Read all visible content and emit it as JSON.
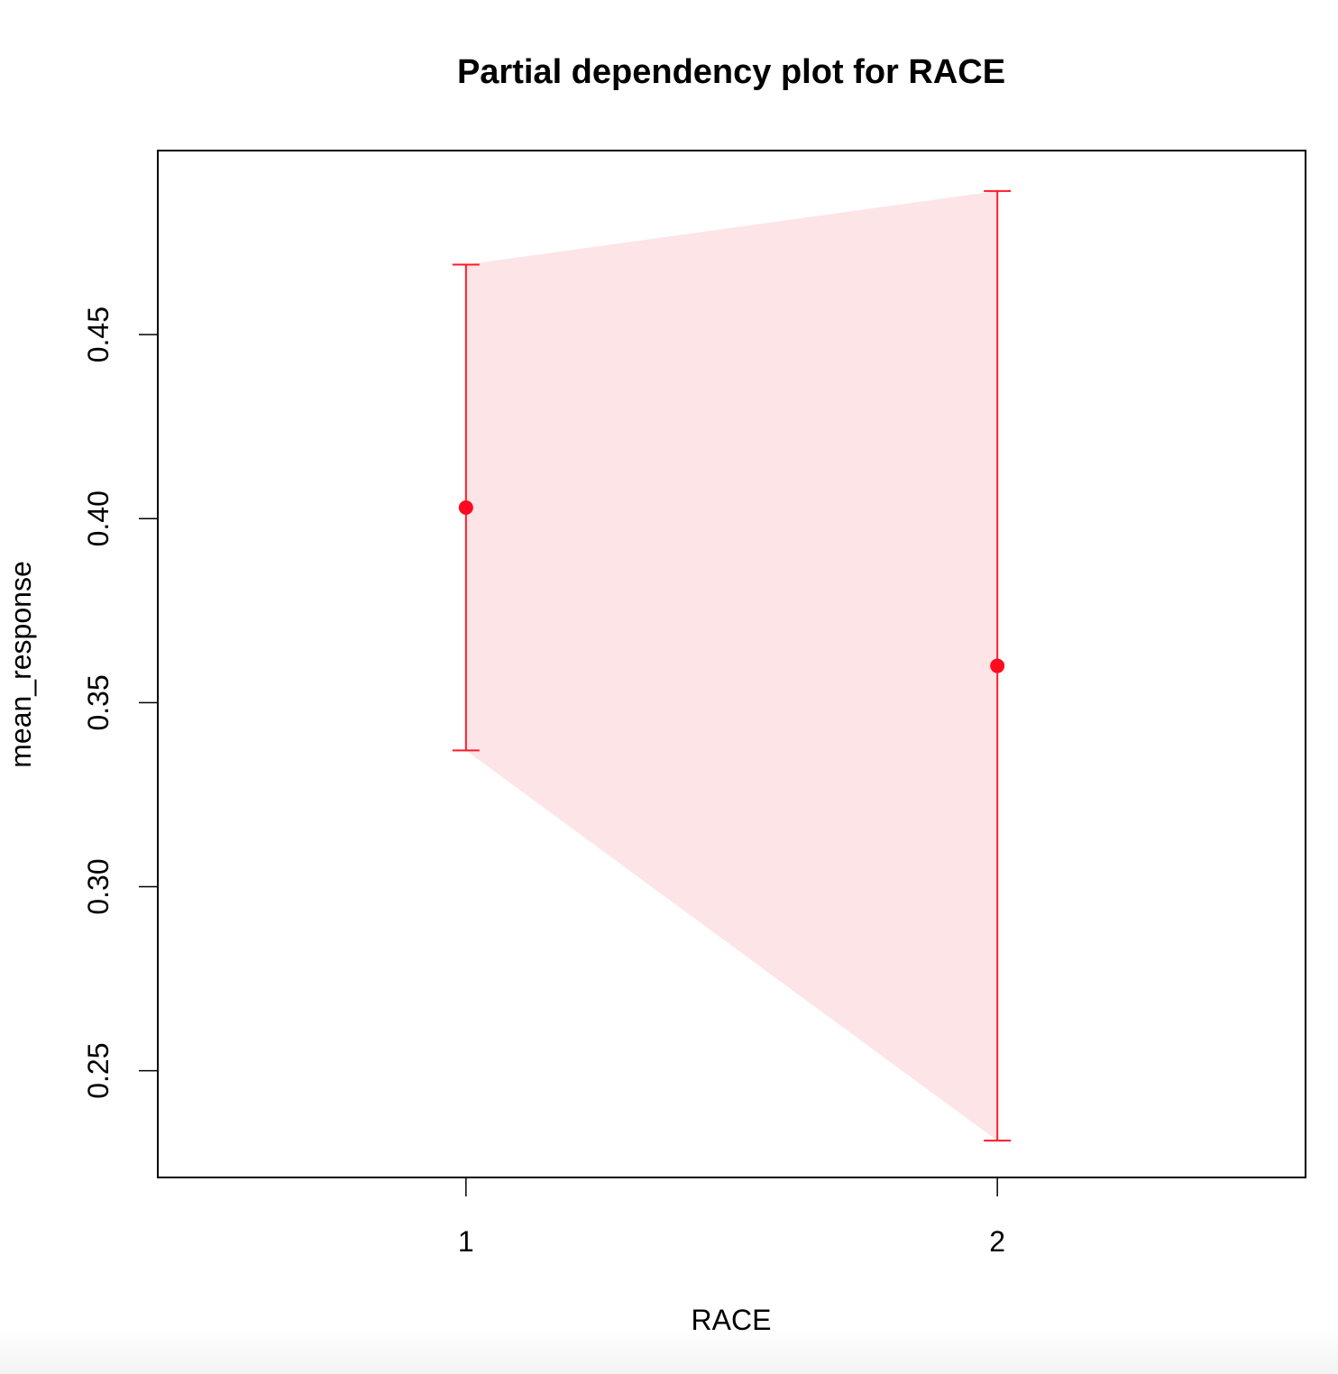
{
  "chart_data": {
    "type": "scatter",
    "title": "Partial dependency plot for RACE",
    "xlabel": "RACE",
    "ylabel": "mean_response",
    "x": [
      1,
      2
    ],
    "x_tick_labels": [
      "1",
      "2"
    ],
    "y_ticks": [
      0.25,
      0.3,
      0.35,
      0.4,
      0.45
    ],
    "y_tick_labels": [
      "0.25",
      "0.30",
      "0.35",
      "0.40",
      "0.45"
    ],
    "xlim": [
      0.42,
      2.58
    ],
    "ylim": [
      0.221,
      0.5
    ],
    "series": [
      {
        "values": [
          0.403,
          0.36
        ],
        "upper": [
          0.469,
          0.489
        ],
        "lower": [
          0.337,
          0.231
        ]
      }
    ],
    "grid": false,
    "colors": {
      "point": "#ff0a1e",
      "errorbar": "#ff1a2a",
      "band": "#fde4e7"
    }
  }
}
